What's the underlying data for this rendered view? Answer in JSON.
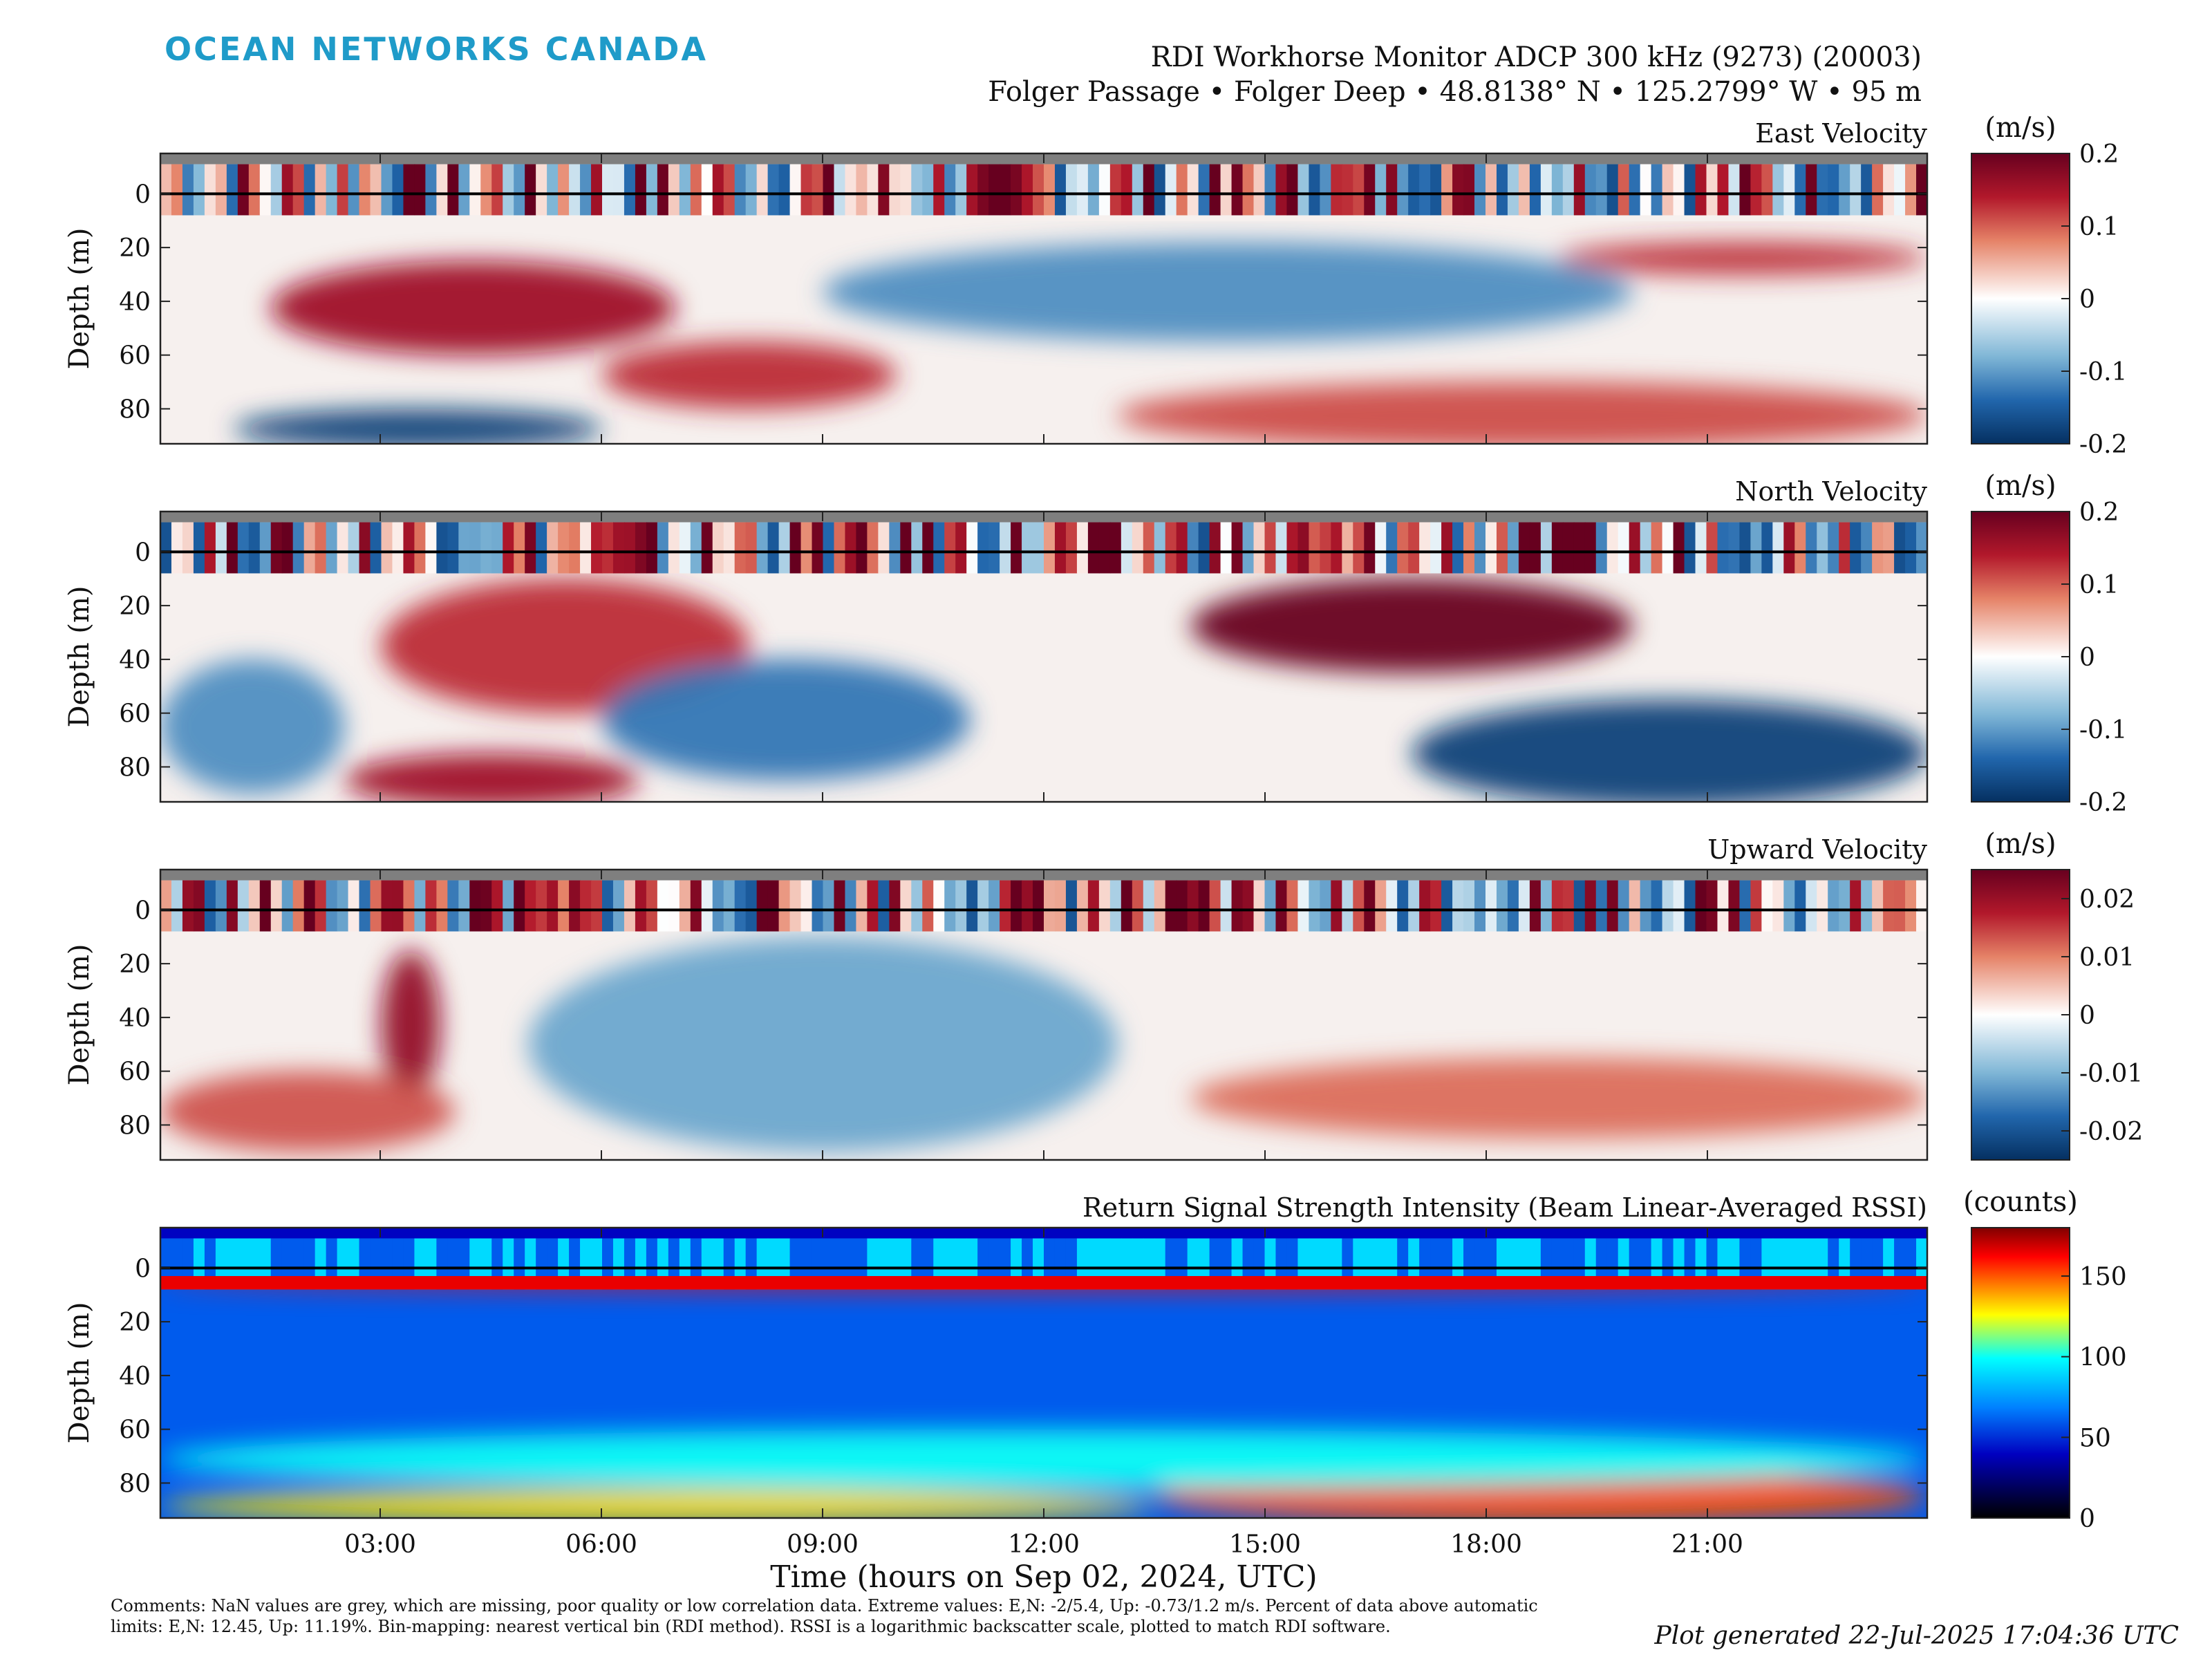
{
  "header": {
    "logo": "OCEAN NETWORKS CANADA",
    "title": "RDI Workhorse Monitor ADCP 300 kHz (9273) (20003)",
    "subtitle": "Folger Passage • Folger Deep • 48.8138° N • 125.2799° W • 95 m"
  },
  "chart_data": [
    {
      "type": "heatmap",
      "title": "East Velocity",
      "ylabel": "Depth (m)",
      "yticks": [
        "0",
        "20",
        "40",
        "60",
        "80"
      ],
      "ylim": [
        -15,
        93
      ],
      "y_inverted": true,
      "colorbar": {
        "label": "(m/s)",
        "ticks": [
          "0.2",
          "0.1",
          "0",
          "-0.1",
          "-0.2"
        ],
        "range": [
          -0.2,
          0.2
        ],
        "colormap": "red-white-blue"
      },
      "features": [
        {
          "t": [
            1.5,
            7.0
          ],
          "depth": [
            25,
            60
          ],
          "value": 0.15
        },
        {
          "t": [
            6.0,
            10.0
          ],
          "depth": [
            55,
            80
          ],
          "value": 0.12
        },
        {
          "t": [
            9.0,
            20.0
          ],
          "depth": [
            18,
            55
          ],
          "value": -0.1
        },
        {
          "t": [
            1.0,
            6.0
          ],
          "depth": [
            80,
            95
          ],
          "value": -0.18
        },
        {
          "t": [
            19.0,
            24.0
          ],
          "depth": [
            18,
            30
          ],
          "value": 0.12
        },
        {
          "t": [
            13.0,
            24.0
          ],
          "depth": [
            70,
            95
          ],
          "value": 0.1
        }
      ]
    },
    {
      "type": "heatmap",
      "title": "North Velocity",
      "ylabel": "Depth (m)",
      "yticks": [
        "0",
        "20",
        "40",
        "60",
        "80"
      ],
      "ylim": [
        -15,
        93
      ],
      "y_inverted": true,
      "colorbar": {
        "label": "(m/s)",
        "ticks": [
          "0.2",
          "0.1",
          "0",
          "-0.1",
          "-0.2"
        ],
        "range": [
          -0.2,
          0.2
        ],
        "colormap": "red-white-blue"
      },
      "features": [
        {
          "t": [
            14.0,
            20.0
          ],
          "depth": [
            10,
            45
          ],
          "value": 0.22
        },
        {
          "t": [
            3.0,
            8.0
          ],
          "depth": [
            10,
            60
          ],
          "value": 0.12
        },
        {
          "t": [
            2.5,
            6.5
          ],
          "depth": [
            75,
            95
          ],
          "value": 0.15
        },
        {
          "t": [
            17.0,
            24.0
          ],
          "depth": [
            55,
            95
          ],
          "value": -0.18
        },
        {
          "t": [
            6.0,
            11.0
          ],
          "depth": [
            40,
            85
          ],
          "value": -0.12
        },
        {
          "t": [
            0.0,
            2.5
          ],
          "depth": [
            40,
            90
          ],
          "value": -0.1
        }
      ]
    },
    {
      "type": "heatmap",
      "title": "Upward Velocity",
      "ylabel": "Depth (m)",
      "yticks": [
        "0",
        "20",
        "40",
        "60",
        "80"
      ],
      "ylim": [
        -15,
        93
      ],
      "y_inverted": true,
      "colorbar": {
        "label": "(m/s)",
        "ticks": [
          "0.02",
          "0.01",
          "0",
          "-0.01",
          "-0.02"
        ],
        "range": [
          -0.025,
          0.025
        ],
        "colormap": "red-white-blue"
      },
      "features": [
        {
          "t": [
            3.0,
            3.8
          ],
          "depth": [
            15,
            70
          ],
          "value": 0.02
        },
        {
          "t": [
            14.0,
            24.0
          ],
          "depth": [
            55,
            85
          ],
          "value": 0.01
        },
        {
          "t": [
            0.0,
            4.0
          ],
          "depth": [
            60,
            90
          ],
          "value": 0.012
        },
        {
          "t": [
            5.0,
            13.0
          ],
          "depth": [
            10,
            90
          ],
          "value": -0.01
        }
      ]
    },
    {
      "type": "heatmap",
      "title": "Return Signal Strength Intensity (Beam Linear-Averaged RSSI)",
      "ylabel": "Depth (m)",
      "yticks": [
        "0",
        "20",
        "40",
        "60",
        "80"
      ],
      "ylim": [
        -15,
        93
      ],
      "y_inverted": true,
      "colorbar": {
        "label": "(counts)",
        "ticks": [
          "150",
          "100",
          "50",
          "0"
        ],
        "range": [
          0,
          180
        ],
        "colormap": "jet"
      },
      "features": [
        {
          "t": [
            13.5,
            24.0
          ],
          "depth": [
            75,
            95
          ],
          "value": 150
        },
        {
          "t": [
            0.0,
            13.5
          ],
          "depth": [
            82,
            95
          ],
          "value": 130
        },
        {
          "t": [
            0.0,
            24.0
          ],
          "depth": [
            60,
            82
          ],
          "value": 100
        },
        {
          "t": [
            0.0,
            24.0
          ],
          "depth": [
            3,
            8
          ],
          "value": 160
        }
      ]
    }
  ],
  "xaxis": {
    "ticks": [
      "03:00",
      "06:00",
      "09:00",
      "12:00",
      "15:00",
      "18:00",
      "21:00"
    ],
    "label": "Time (hours on Sep 02, 2024, UTC)"
  },
  "footer": {
    "comments": "Comments: NaN values are grey, which are missing, poor quality or low correlation data. Extreme values: E,N: -2/5.4, Up: -0.73/1.2 m/s. Percent of data above automatic limits: E,N: 12.45, Up: 11.19%. Bin-mapping: nearest vertical bin (RDI method). RSSI is a logarithmic backscatter scale, plotted to match RDI software.",
    "generated": "Plot generated 22-Jul-2025 17:04:36 UTC"
  },
  "colors": {
    "logo": "#1f9bc9",
    "nan_grey": "#7f7f7f"
  }
}
